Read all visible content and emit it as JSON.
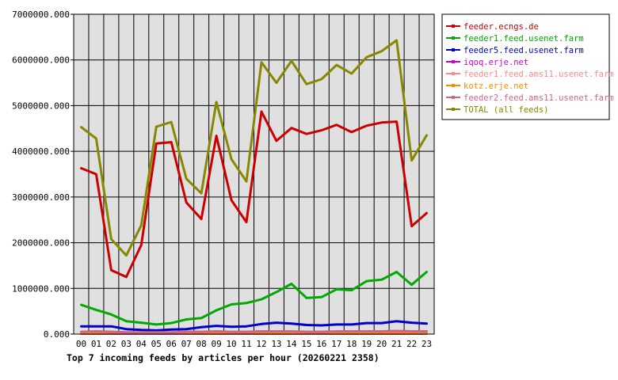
{
  "chart_data": {
    "type": "line",
    "title": "Top 7 incoming feeds by articles per hour (20260221 2358)",
    "x": [
      "00",
      "01",
      "02",
      "03",
      "04",
      "05",
      "06",
      "07",
      "08",
      "09",
      "10",
      "11",
      "12",
      "13",
      "14",
      "15",
      "16",
      "17",
      "18",
      "19",
      "20",
      "21",
      "22",
      "23"
    ],
    "yticks": [
      "0.000",
      "1000000.000",
      "2000000.000",
      "3000000.000",
      "4000000.000",
      "5000000.000",
      "6000000.000",
      "7000000.000"
    ],
    "ylim": [
      0,
      7000000
    ],
    "grid": true,
    "legend_position": "right",
    "series": [
      {
        "name": "feeder.ecngs.de",
        "color": "#cc0000",
        "values": [
          3630000,
          3500000,
          1400000,
          1250000,
          1950000,
          4170000,
          4200000,
          2880000,
          2520000,
          4340000,
          2930000,
          2450000,
          4870000,
          4230000,
          4510000,
          4380000,
          4460000,
          4580000,
          4420000,
          4560000,
          4630000,
          4650000,
          2360000,
          2650000
        ]
      },
      {
        "name": "feeder1.feed.usenet.farm",
        "color": "#00aa00",
        "values": [
          640000,
          530000,
          430000,
          280000,
          250000,
          210000,
          240000,
          320000,
          350000,
          520000,
          650000,
          680000,
          760000,
          920000,
          1100000,
          790000,
          810000,
          980000,
          960000,
          1160000,
          1190000,
          1360000,
          1080000,
          1360000
        ]
      },
      {
        "name": "feeder5.feed.usenet.farm",
        "color": "#0000cc",
        "values": [
          170000,
          170000,
          170000,
          110000,
          90000,
          80000,
          100000,
          110000,
          150000,
          180000,
          160000,
          170000,
          220000,
          250000,
          230000,
          200000,
          190000,
          210000,
          210000,
          240000,
          240000,
          280000,
          250000,
          230000
        ]
      },
      {
        "name": "iqoq.erje.net",
        "color": "#cc00cc",
        "values": [
          10000,
          10000,
          10000,
          10000,
          10000,
          10000,
          10000,
          10000,
          10000,
          10000,
          10000,
          10000,
          10000,
          10000,
          10000,
          10000,
          10000,
          10000,
          10000,
          10000,
          10000,
          10000,
          10000,
          10000
        ]
      },
      {
        "name": "feeder1.feed.ams11.usenet.farm",
        "color": "#ff8888",
        "values": [
          30000,
          30000,
          30000,
          30000,
          30000,
          30000,
          30000,
          30000,
          30000,
          30000,
          30000,
          30000,
          30000,
          30000,
          30000,
          30000,
          30000,
          30000,
          30000,
          30000,
          30000,
          30000,
          30000,
          30000
        ]
      },
      {
        "name": "kotz.erje.net",
        "color": "#ff8800",
        "values": [
          15000,
          15000,
          15000,
          15000,
          15000,
          15000,
          15000,
          15000,
          15000,
          15000,
          15000,
          15000,
          15000,
          15000,
          15000,
          15000,
          15000,
          15000,
          15000,
          15000,
          15000,
          15000,
          15000,
          15000
        ]
      },
      {
        "name": "feeder2.feed.ams11.usenet.farm",
        "color": "#cc6688",
        "values": [
          50000,
          60000,
          50000,
          40000,
          40000,
          40000,
          40000,
          50000,
          50000,
          60000,
          50000,
          50000,
          60000,
          60000,
          60000,
          50000,
          50000,
          60000,
          60000,
          60000,
          60000,
          70000,
          60000,
          60000
        ]
      },
      {
        "name": "TOTAL (all feeds)",
        "color": "#888800",
        "values": [
          4530000,
          4280000,
          2080000,
          1720000,
          2380000,
          4540000,
          4640000,
          3400000,
          3080000,
          5080000,
          3830000,
          3340000,
          5950000,
          5500000,
          5980000,
          5470000,
          5580000,
          5890000,
          5700000,
          6060000,
          6190000,
          6430000,
          3800000,
          4350000
        ]
      }
    ]
  }
}
